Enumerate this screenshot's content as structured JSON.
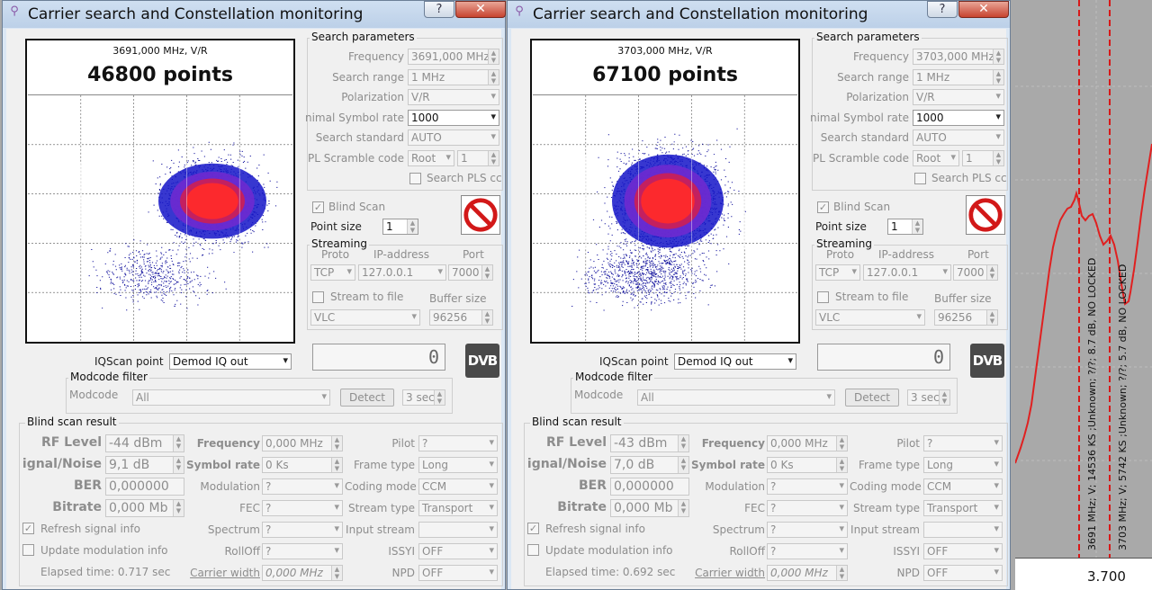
{
  "winA": {
    "title": "Carrier search and Constellation monitoring",
    "help_label": "?",
    "close_label": "✕",
    "const": {
      "freq_pol": "3691,000 MHz, V/R",
      "points": "46800 points"
    },
    "search": {
      "group": "Search parameters",
      "frequency_label": "Frequency",
      "frequency_value": "3691,000 MHz",
      "range_label": "Search range",
      "range_value": "1 MHz",
      "pol_label": "Polarization",
      "pol_value": "V/R",
      "sr_label": "nimal Symbol rate",
      "sr_value": "1000",
      "std_label": "Search standard",
      "std_value": "AUTO",
      "pls_label": "PL Scramble code",
      "pls_mode": "Root",
      "pls_value": "1",
      "search_pls_label": "Search PLS cc",
      "blind_label": "Blind Scan",
      "point_size_label": "Point size",
      "point_size_value": "1"
    },
    "streaming": {
      "group": "Streaming",
      "proto_label": "Proto",
      "ip_label": "IP-address",
      "port_label": "Port",
      "proto_value": "TCP",
      "ip_value": "127.0.0.1",
      "port_value": "7000",
      "file_label": "Stream to file",
      "buffer_label": "Buffer size",
      "player_value": "VLC",
      "buffer_value": "96256"
    },
    "counter": "0",
    "dvb_logo": "DVB",
    "iq": {
      "label": "IQScan point",
      "value": "Demod IQ out"
    },
    "modcode": {
      "group": "Modcode filter",
      "label": "Modcode",
      "value": "All",
      "detect": "Detect",
      "sec": "3 sec"
    },
    "result": {
      "group": "Blind scan result",
      "rf_label": "RF Level",
      "rf_value": "-44 dBm",
      "sn_label": "ignal/Noise",
      "sn_value": "9,1 dB",
      "ber_label": "BER",
      "ber_value": "0,000000",
      "bitrate_label": "Bitrate",
      "bitrate_value": "0,000 Mb",
      "freq_label": "Frequency",
      "freq_value": "0,000 MHz",
      "sr_label": "Symbol rate",
      "sr_value": "0 Ks",
      "mod_label": "Modulation",
      "mod_value": "?",
      "fec_label": "FEC",
      "fec_value": "?",
      "spec_label": "Spectrum",
      "spec_value": "?",
      "roll_label": "RollOff",
      "roll_value": "?",
      "cw_label": "Carrier width",
      "cw_value": "0,000 MHz",
      "pilot_label": "Pilot",
      "pilot_value": "?",
      "frame_label": "Frame type",
      "frame_value": "Long",
      "coding_label": "Coding mode",
      "coding_value": "CCM",
      "stype_label": "Stream type",
      "stype_value": "Transport",
      "istream_label": "Input stream",
      "istream_value": "",
      "issyi_label": "ISSYI",
      "issyi_value": "OFF",
      "npd_label": "NPD",
      "npd_value": "OFF",
      "refresh_label": "Refresh signal info",
      "update_label": "Update modulation info",
      "elapsed": "Elapsed time: 0.717 sec"
    }
  },
  "winB": {
    "title": "Carrier search and Constellation monitoring",
    "help_label": "?",
    "close_label": "✕",
    "const": {
      "freq_pol": "3703,000 MHz, V/R",
      "points": "67100 points"
    },
    "search": {
      "group": "Search parameters",
      "frequency_label": "Frequency",
      "frequency_value": "3703,000 MHz",
      "range_label": "Search range",
      "range_value": "1 MHz",
      "pol_label": "Polarization",
      "pol_value": "V/R",
      "sr_label": "nimal Symbol rate",
      "sr_value": "1000",
      "std_label": "Search standard",
      "std_value": "AUTO",
      "pls_label": "PL Scramble code",
      "pls_mode": "Root",
      "pls_value": "1",
      "search_pls_label": "Search PLS cc",
      "blind_label": "Blind Scan",
      "point_size_label": "Point size",
      "point_size_value": "1"
    },
    "streaming": {
      "group": "Streaming",
      "proto_label": "Proto",
      "ip_label": "IP-address",
      "port_label": "Port",
      "proto_value": "TCP",
      "ip_value": "127.0.0.1",
      "port_value": "7000",
      "file_label": "Stream to file",
      "buffer_label": "Buffer size",
      "player_value": "VLC",
      "buffer_value": "96256"
    },
    "counter": "0",
    "dvb_logo": "DVB",
    "iq": {
      "label": "IQScan point",
      "value": "Demod IQ out"
    },
    "modcode": {
      "group": "Modcode filter",
      "label": "Modcode",
      "value": "All",
      "detect": "Detect",
      "sec": "3 sec"
    },
    "result": {
      "group": "Blind scan result",
      "rf_label": "RF Level",
      "rf_value": "-43 dBm",
      "sn_label": "ignal/Noise",
      "sn_value": "7,0 dB",
      "ber_label": "BER",
      "ber_value": "0,000000",
      "bitrate_label": "Bitrate",
      "bitrate_value": "0,000 Mb",
      "freq_label": "Frequency",
      "freq_value": "0,000 MHz",
      "sr_label": "Symbol rate",
      "sr_value": "0 Ks",
      "mod_label": "Modulation",
      "mod_value": "?",
      "fec_label": "FEC",
      "fec_value": "?",
      "spec_label": "Spectrum",
      "spec_value": "?",
      "roll_label": "RollOff",
      "roll_value": "?",
      "cw_label": "Carrier width",
      "cw_value": "0,000 MHz",
      "pilot_label": "Pilot",
      "pilot_value": "?",
      "frame_label": "Frame type",
      "frame_value": "Long",
      "coding_label": "Coding mode",
      "coding_value": "CCM",
      "stype_label": "Stream type",
      "stype_value": "Transport",
      "istream_label": "Input stream",
      "istream_value": "",
      "issyi_label": "ISSYI",
      "issyi_value": "OFF",
      "npd_label": "NPD",
      "npd_value": "OFF",
      "refresh_label": "Refresh signal info",
      "update_label": "Update modulation info",
      "elapsed": "Elapsed time: 0.692 sec"
    }
  },
  "spectrum": {
    "markers": [
      "3691 MHz; V; 14536 KS ;Unknown; ?/?; 8.7 dB, NO LOCKED",
      "3703 MHz; V; 5742 KS ;Unknown; ?/?; 5.7 dB, NO LOCKED"
    ],
    "axis_tick": "3.700",
    "trace_color": "#e02020",
    "marker_color": "#d81818"
  }
}
